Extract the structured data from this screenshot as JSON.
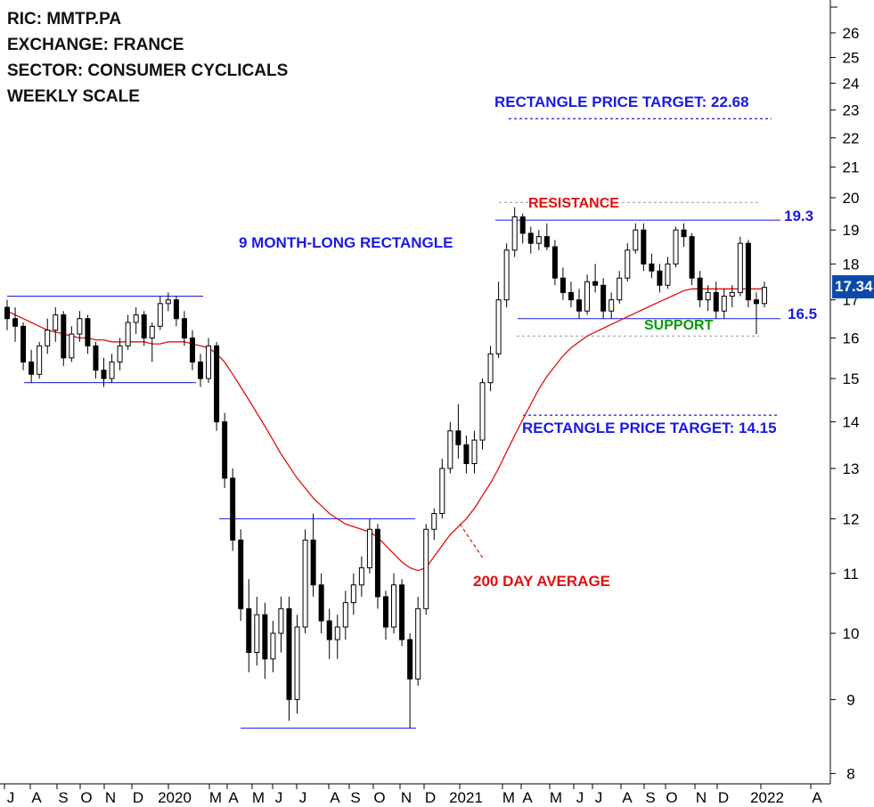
{
  "header": {
    "ric": "RIC: MMTP.PA",
    "exchange": "EXCHANGE: FRANCE",
    "sector": "SECTOR: CONSUMER CYCLICALS",
    "scale": "WEEKLY SCALE"
  },
  "annotations": {
    "target_up": "RECTANGLE PRICE TARGET: 22.68",
    "target_down": "RECTANGLE PRICE TARGET: 14.15",
    "rectangle": "9 MONTH-LONG RECTANGLE",
    "resistance": "RESISTANCE",
    "support": "SUPPORT",
    "resistance_value": "19.3",
    "support_value": "16.5",
    "ma_label": "200 DAY AVERAGE"
  },
  "last_price": "17.34",
  "colors": {
    "candle": "#000000",
    "ma": "#e01010",
    "levels": "#1a1ae6",
    "last_price_bg": "#0b4aa8"
  },
  "chart_data": {
    "type": "candlestick",
    "scale": "log",
    "ylim": [
      7.8,
      27
    ],
    "y_ticks": [
      8,
      9,
      10,
      11,
      12,
      13,
      14,
      15,
      16,
      17,
      18,
      19,
      20,
      21,
      22,
      23,
      24,
      25,
      26
    ],
    "x_ticks": [
      "J",
      "A",
      "S",
      "O",
      "N",
      "D",
      "2020",
      "M",
      "A",
      "M",
      "J",
      "J",
      "A",
      "S",
      "O",
      "N",
      "D",
      "2021",
      "M",
      "A",
      "M",
      "J",
      "J",
      "A",
      "S",
      "O",
      "N",
      "D",
      "2022",
      "A"
    ],
    "levels": {
      "resistance": 19.3,
      "support": 16.5,
      "target_up": 22.68,
      "target_down": 14.15,
      "rect_2019_top": 17.1,
      "rect_2019_bottom": 14.9,
      "rect_2020_top": 12.0,
      "rect_2020_bottom": 8.6
    },
    "series": [
      {
        "name": "price",
        "ohlc": [
          [
            16.8,
            17.0,
            16.2,
            16.5
          ],
          [
            16.5,
            16.8,
            15.9,
            16.3
          ],
          [
            16.3,
            16.4,
            15.2,
            15.4
          ],
          [
            15.4,
            15.7,
            14.9,
            15.1
          ],
          [
            15.1,
            15.9,
            15.0,
            15.8
          ],
          [
            15.8,
            16.5,
            15.6,
            16.2
          ],
          [
            16.2,
            16.8,
            15.9,
            16.6
          ],
          [
            16.6,
            16.7,
            15.3,
            15.5
          ],
          [
            15.5,
            16.3,
            15.4,
            16.1
          ],
          [
            16.1,
            16.7,
            15.9,
            16.5
          ],
          [
            16.5,
            16.6,
            15.6,
            15.8
          ],
          [
            15.8,
            15.9,
            15.0,
            15.2
          ],
          [
            15.2,
            15.5,
            14.8,
            15.0
          ],
          [
            15.0,
            15.6,
            14.9,
            15.4
          ],
          [
            15.4,
            16.0,
            15.2,
            15.8
          ],
          [
            15.8,
            16.6,
            15.7,
            16.4
          ],
          [
            16.4,
            16.8,
            16.1,
            16.6
          ],
          [
            16.6,
            16.7,
            15.8,
            16.0
          ],
          [
            16.0,
            16.4,
            15.4,
            16.3
          ],
          [
            16.3,
            17.1,
            16.2,
            16.9
          ],
          [
            16.9,
            17.2,
            16.7,
            17.0
          ],
          [
            17.0,
            17.1,
            16.3,
            16.5
          ],
          [
            16.5,
            16.7,
            15.8,
            16.0
          ],
          [
            16.0,
            16.2,
            15.2,
            15.4
          ],
          [
            15.4,
            15.6,
            14.8,
            15.0
          ],
          [
            15.0,
            16.0,
            14.9,
            15.8
          ],
          [
            15.8,
            15.9,
            13.8,
            14.0
          ],
          [
            14.0,
            14.2,
            12.6,
            12.8
          ],
          [
            12.8,
            13.0,
            11.4,
            11.6
          ],
          [
            11.6,
            11.8,
            10.2,
            10.4
          ],
          [
            10.4,
            10.9,
            9.4,
            9.7
          ],
          [
            9.7,
            10.6,
            9.5,
            10.3
          ],
          [
            10.3,
            10.5,
            9.3,
            9.6
          ],
          [
            9.6,
            10.2,
            9.4,
            10.0
          ],
          [
            10.0,
            10.6,
            9.7,
            10.4
          ],
          [
            10.4,
            10.6,
            8.7,
            9.0
          ],
          [
            9.0,
            10.3,
            8.8,
            10.1
          ],
          [
            10.1,
            11.8,
            10.0,
            11.6
          ],
          [
            11.6,
            12.1,
            10.6,
            10.8
          ],
          [
            10.8,
            11.0,
            10.0,
            10.2
          ],
          [
            10.2,
            10.4,
            9.6,
            9.9
          ],
          [
            9.9,
            10.3,
            9.6,
            10.1
          ],
          [
            10.1,
            10.7,
            9.9,
            10.5
          ],
          [
            10.5,
            11.0,
            10.3,
            10.8
          ],
          [
            10.8,
            11.3,
            10.6,
            11.1
          ],
          [
            11.1,
            12.0,
            11.0,
            11.8
          ],
          [
            11.8,
            11.9,
            10.4,
            10.6
          ],
          [
            10.6,
            10.7,
            9.9,
            10.1
          ],
          [
            10.1,
            11.0,
            10.0,
            10.8
          ],
          [
            10.8,
            10.9,
            9.8,
            9.9
          ],
          [
            9.9,
            10.0,
            8.6,
            9.3
          ],
          [
            9.3,
            10.6,
            9.2,
            10.4
          ],
          [
            10.4,
            11.9,
            10.3,
            11.8
          ],
          [
            11.8,
            12.2,
            11.6,
            12.1
          ],
          [
            12.1,
            13.2,
            12.0,
            13.0
          ],
          [
            13.0,
            14.0,
            12.9,
            13.8
          ],
          [
            13.8,
            14.4,
            13.2,
            13.5
          ],
          [
            13.5,
            13.7,
            12.9,
            13.1
          ],
          [
            13.1,
            13.8,
            12.9,
            13.6
          ],
          [
            13.6,
            15.0,
            13.4,
            14.9
          ],
          [
            14.9,
            15.8,
            14.7,
            15.6
          ],
          [
            15.6,
            17.5,
            15.5,
            17.0
          ],
          [
            17.0,
            18.6,
            16.8,
            18.4
          ],
          [
            18.4,
            19.7,
            18.2,
            19.4
          ],
          [
            19.4,
            19.5,
            18.6,
            18.9
          ],
          [
            18.9,
            19.1,
            18.3,
            18.6
          ],
          [
            18.6,
            19.0,
            18.4,
            18.8
          ],
          [
            18.8,
            19.2,
            18.4,
            18.5
          ],
          [
            18.5,
            18.7,
            17.4,
            17.6
          ],
          [
            17.6,
            17.9,
            17.0,
            17.2
          ],
          [
            17.2,
            17.5,
            16.8,
            17.0
          ],
          [
            17.0,
            17.3,
            16.5,
            16.7
          ],
          [
            16.7,
            17.7,
            16.6,
            17.5
          ],
          [
            17.5,
            18.0,
            17.2,
            17.4
          ],
          [
            17.4,
            17.6,
            16.5,
            16.7
          ],
          [
            16.7,
            17.2,
            16.5,
            17.0
          ],
          [
            17.0,
            17.8,
            16.9,
            17.6
          ],
          [
            17.6,
            18.6,
            17.5,
            18.4
          ],
          [
            18.4,
            19.2,
            18.3,
            19.0
          ],
          [
            19.0,
            19.2,
            17.8,
            18.0
          ],
          [
            18.0,
            18.3,
            17.6,
            17.8
          ],
          [
            17.8,
            18.0,
            17.2,
            17.4
          ],
          [
            17.4,
            18.2,
            17.3,
            18.0
          ],
          [
            18.0,
            19.1,
            17.9,
            19.0
          ],
          [
            19.0,
            19.2,
            18.5,
            18.8
          ],
          [
            18.8,
            18.9,
            17.4,
            17.6
          ],
          [
            17.6,
            17.8,
            16.8,
            17.0
          ],
          [
            17.0,
            17.4,
            16.7,
            17.2
          ],
          [
            17.2,
            17.5,
            16.5,
            16.7
          ],
          [
            16.7,
            17.3,
            16.5,
            17.1
          ],
          [
            17.1,
            17.4,
            16.8,
            17.2
          ],
          [
            17.2,
            18.8,
            17.1,
            18.6
          ],
          [
            18.6,
            18.7,
            16.8,
            17.0
          ],
          [
            17.0,
            17.2,
            16.1,
            16.9
          ],
          [
            16.9,
            17.5,
            16.8,
            17.34
          ]
        ]
      },
      {
        "name": "200 DAY AVERAGE",
        "values": [
          16.7,
          16.6,
          16.5,
          16.4,
          16.3,
          16.2,
          16.15,
          16.1,
          16.05,
          16.0,
          16.0,
          15.95,
          15.95,
          15.9,
          15.9,
          15.9,
          15.9,
          15.9,
          15.85,
          15.85,
          15.9,
          15.9,
          15.9,
          15.85,
          15.8,
          15.75,
          15.6,
          15.4,
          15.1,
          14.8,
          14.5,
          14.2,
          13.9,
          13.6,
          13.3,
          13.05,
          12.8,
          12.6,
          12.4,
          12.25,
          12.1,
          12.0,
          11.9,
          11.85,
          11.8,
          11.75,
          11.65,
          11.5,
          11.35,
          11.2,
          11.1,
          11.05,
          11.1,
          11.3,
          11.5,
          11.7,
          11.85,
          12.0,
          12.2,
          12.45,
          12.7,
          13.0,
          13.35,
          13.7,
          14.05,
          14.4,
          14.75,
          15.05,
          15.3,
          15.55,
          15.75,
          15.9,
          16.05,
          16.15,
          16.25,
          16.35,
          16.45,
          16.55,
          16.65,
          16.75,
          16.85,
          16.95,
          17.05,
          17.15,
          17.25,
          17.3,
          17.3,
          17.3,
          17.3,
          17.3,
          17.3,
          17.3,
          17.3,
          17.3,
          17.3
        ]
      }
    ]
  }
}
